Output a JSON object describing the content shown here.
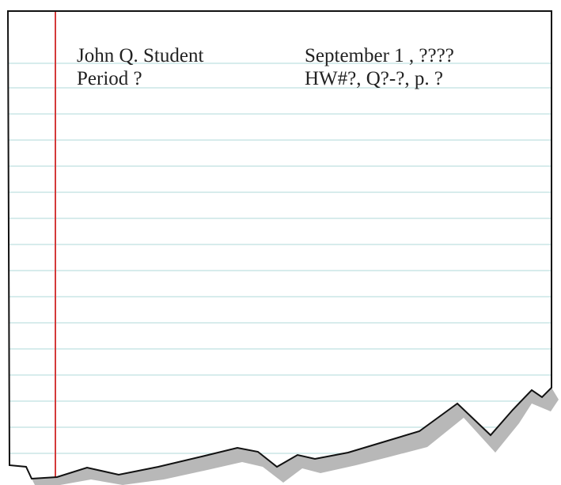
{
  "header": {
    "name": "John Q. Student",
    "period": "Period ?",
    "date": "September 1 , ????",
    "assignment": "HW#?, Q?-?, p. ?"
  }
}
